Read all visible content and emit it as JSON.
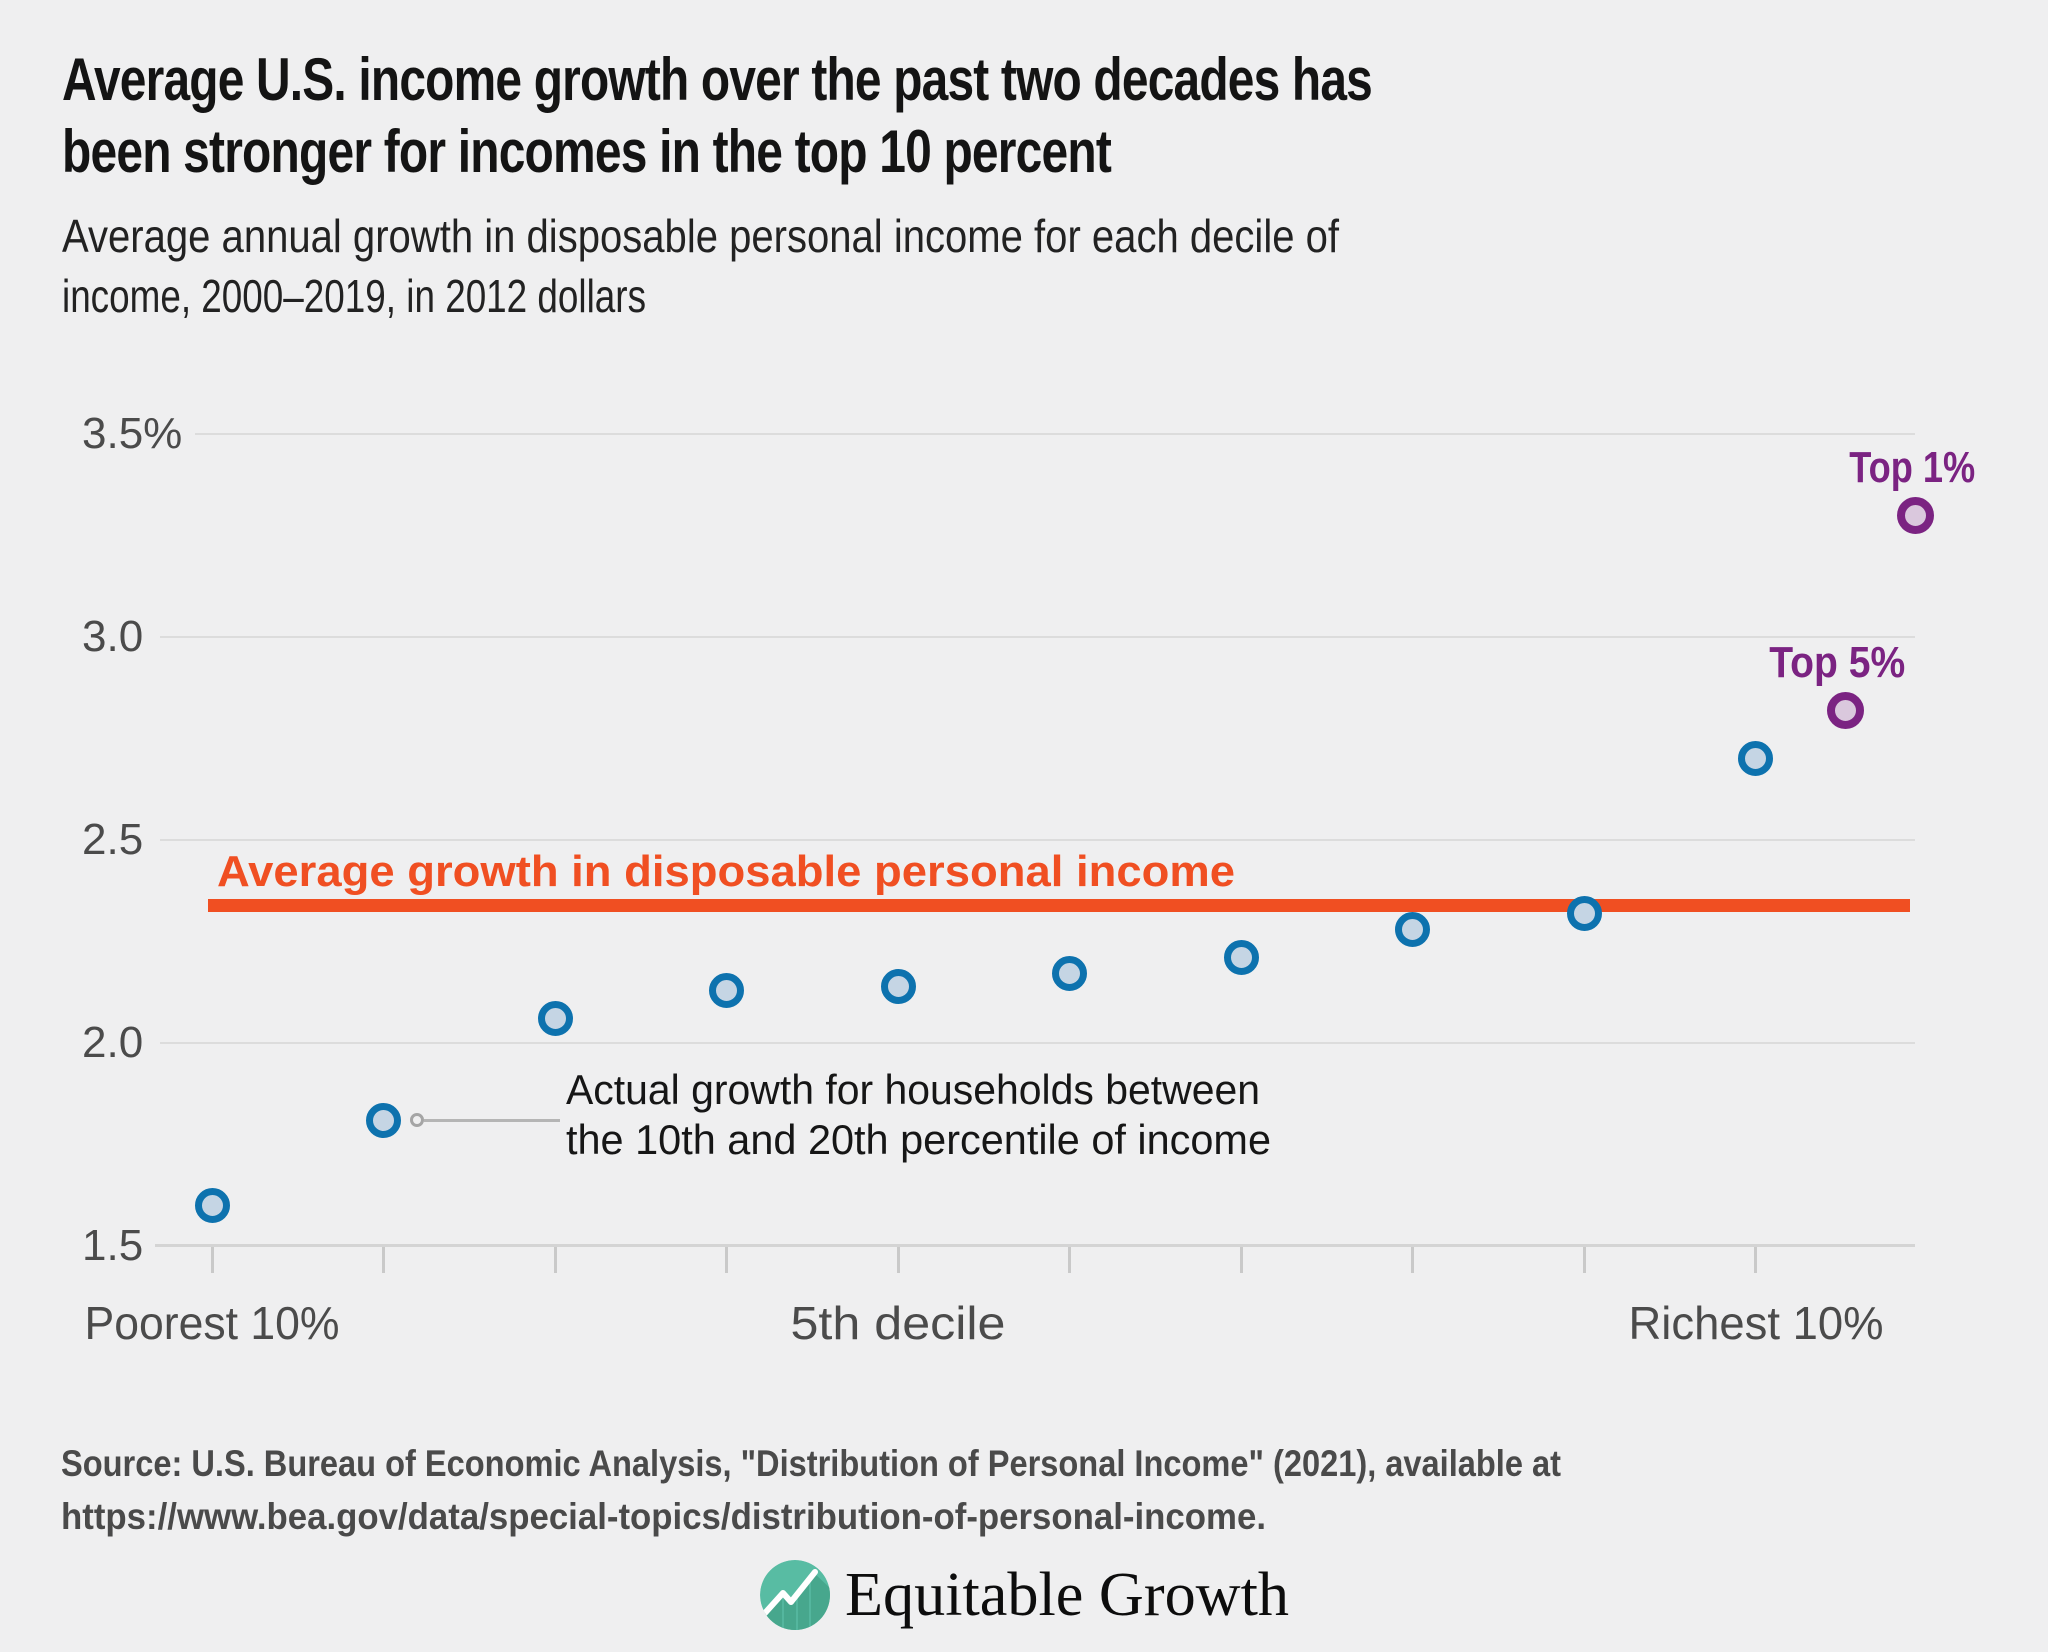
{
  "page": {
    "background": "#efeff0"
  },
  "header": {
    "title_lines": [
      "Average U.S. income growth over the past two decades has",
      "been stronger for incomes in the top 10 percent"
    ],
    "subtitle_lines": [
      "Average annual growth in disposable personal income for each decile of",
      "income, 2000–2019, in 2012 dollars"
    ]
  },
  "chart_data": {
    "type": "scatter",
    "title": "Average U.S. income growth over the past two decades has been stronger for incomes in the top 10 percent",
    "subtitle": "Average annual growth in disposable personal income for each decile of income, 2000–2019, in 2012 dollars",
    "y_axis": {
      "unit": "percent",
      "range": [
        1.5,
        3.5
      ],
      "tick_values": [
        3.5,
        3.0,
        2.5,
        2.0,
        1.5
      ],
      "tick_labels": [
        "3.5%",
        "3.0",
        "2.5",
        "2.0",
        "1.5"
      ],
      "grid": true
    },
    "x_axis": {
      "categories": "income deciles 1-10 plus Top 5% and Top 1%",
      "labels": [
        {
          "text": "Poorest 10%",
          "at_decile": 1
        },
        {
          "text": "5th decile",
          "at_decile": 5
        },
        {
          "text": "Richest 10%",
          "at_decile": 10
        }
      ]
    },
    "series": [
      {
        "name": "Growth by income decile",
        "marker": "ring-circle",
        "stroke": "#0d72ae",
        "fill": "#c5d5e4",
        "points": [
          {
            "decile": 1,
            "value": 1.6
          },
          {
            "decile": 2,
            "value": 1.81
          },
          {
            "decile": 3,
            "value": 2.06
          },
          {
            "decile": 4,
            "value": 2.13
          },
          {
            "decile": 5,
            "value": 2.14
          },
          {
            "decile": 6,
            "value": 2.17
          },
          {
            "decile": 7,
            "value": 2.21
          },
          {
            "decile": 8,
            "value": 2.28
          },
          {
            "decile": 9,
            "value": 2.32
          },
          {
            "decile": 10,
            "value": 2.7
          }
        ]
      },
      {
        "name": "Top income groups",
        "marker": "ring-circle",
        "stroke": "#7b2382",
        "fill": "#dac8dd",
        "points": [
          {
            "group": "Top 5%",
            "label": "Top 5%",
            "value": 2.82
          },
          {
            "group": "Top 1%",
            "label": "Top 1%",
            "value": 3.3
          }
        ]
      }
    ],
    "reference_line": {
      "label": "Average growth in disposable personal income",
      "value": 2.34,
      "color": "#f04f22"
    },
    "annotation": {
      "lines": [
        "Actual growth for households between",
        "the 10th and 20th percentile of income"
      ],
      "target_decile": 2
    },
    "legend": "none"
  },
  "source": {
    "lines": [
      "Source: U.S. Bureau of Economic Analysis, \"Distribution of Personal Income\" (2021), available at",
      "https://www.bea.gov/data/special-topics/distribution-of-personal-income."
    ]
  },
  "footer": {
    "logo_icon": "growth-line-circle-icon",
    "logo_text": "Equitable Growth",
    "logo_color": "#58bca3"
  }
}
